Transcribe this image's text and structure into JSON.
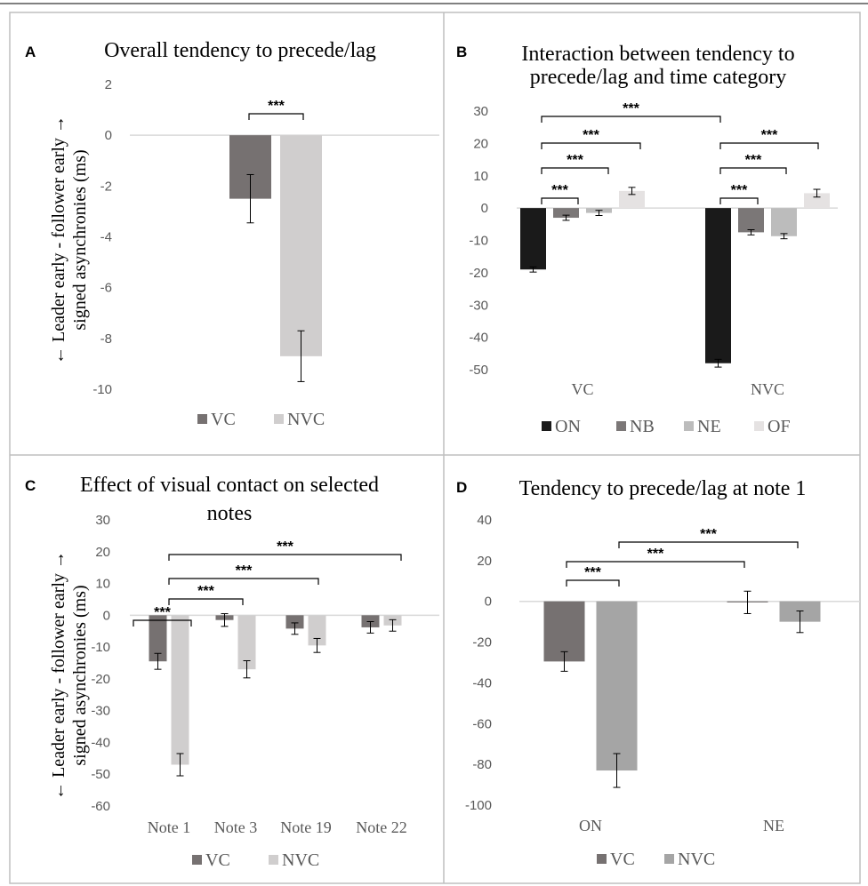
{
  "colors": {
    "VC": "#767171",
    "NVC": "#d0cece",
    "ON": "#1a1a1a",
    "NB": "#7b7777",
    "NE": "#bcbcbc",
    "OF": "#e5e2e2",
    "NVC_D": "#a5a5a5",
    "gridline": "#d9d9d9",
    "border": "#bfbfbf"
  },
  "chart_data": [
    {
      "panel": "A",
      "type": "bar",
      "title": "Overall tendency to precede/lag",
      "ylabel": "← Leader early - follower early → signed asynchronies (ms)",
      "ylim": [
        -10,
        2
      ],
      "yticks": [
        2,
        0,
        -2,
        -4,
        -6,
        -8,
        -10
      ],
      "categories": [
        ""
      ],
      "series": [
        {
          "name": "VC",
          "values": [
            -2.5
          ],
          "error": [
            0.95
          ]
        },
        {
          "name": "NVC",
          "values": [
            -8.7
          ],
          "error": [
            1.0
          ]
        }
      ],
      "legend": [
        "VC",
        "NVC"
      ],
      "annotations": [
        {
          "text": "***",
          "from": "VC",
          "to": "NVC"
        }
      ]
    },
    {
      "panel": "B",
      "type": "bar",
      "title": "Interaction between tendency to precede/lag and time category",
      "title_lines": [
        "Interaction between tendency to",
        "precede/lag and time category"
      ],
      "ylim": [
        -50,
        30
      ],
      "yticks": [
        30,
        20,
        10,
        0,
        -10,
        -20,
        -30,
        -40,
        -50
      ],
      "categories": [
        "VC",
        "NVC"
      ],
      "series": [
        {
          "name": "ON",
          "values": [
            -19,
            -48
          ],
          "error": [
            0.8,
            1.2
          ]
        },
        {
          "name": "NB",
          "values": [
            -3,
            -7.5
          ],
          "error": [
            0.8,
            0.8
          ]
        },
        {
          "name": "NE",
          "values": [
            -1.5,
            -8.7
          ],
          "error": [
            0.8,
            0.8
          ]
        },
        {
          "name": "OF",
          "values": [
            5.3,
            4.6
          ],
          "error": [
            1.1,
            1.2
          ]
        }
      ],
      "legend": [
        "ON",
        "NB",
        "NE",
        "OF"
      ],
      "annotations": [
        {
          "text": "***",
          "group": "VC",
          "from": "ON",
          "to": "NB"
        },
        {
          "text": "***",
          "group": "VC",
          "from": "ON",
          "to": "NE"
        },
        {
          "text": "***",
          "group": "VC",
          "from": "ON",
          "to": "OF"
        },
        {
          "text": "***",
          "group": "NVC",
          "from": "ON",
          "to": "NB"
        },
        {
          "text": "***",
          "group": "NVC",
          "from": "ON",
          "to": "NE"
        },
        {
          "text": "***",
          "group": "NVC",
          "from": "ON",
          "to": "OF"
        },
        {
          "text": "***",
          "from": "VC ON",
          "to": "NVC ON"
        }
      ]
    },
    {
      "panel": "C",
      "type": "bar",
      "title": "Effect of visual contact on selected notes",
      "title_lines": [
        "Effect of visual contact on selected",
        "notes"
      ],
      "ylabel": "← Leader early - follower early → signed asynchronies (ms)",
      "ylim": [
        -60,
        30
      ],
      "yticks": [
        30,
        20,
        10,
        0,
        -10,
        -20,
        -30,
        -40,
        -50,
        -60
      ],
      "categories": [
        "Note 1",
        "Note 3",
        "Note 19",
        "Note 22"
      ],
      "series": [
        {
          "name": "VC",
          "values": [
            -14.5,
            -1.5,
            -4.2,
            -3.8
          ],
          "error": [
            2.5,
            2.0,
            1.8,
            1.8
          ]
        },
        {
          "name": "NVC",
          "values": [
            -47,
            -17,
            -9.5,
            -3.2
          ],
          "error": [
            3.5,
            2.7,
            2.2,
            1.8
          ]
        }
      ],
      "legend": [
        "VC",
        "NVC"
      ],
      "annotations": [
        {
          "text": "***",
          "from": "Note 1 VC",
          "to": "Note 1 NVC"
        },
        {
          "text": "***",
          "from": "Note 1",
          "to": "Note 3"
        },
        {
          "text": "***",
          "from": "Note 1",
          "to": "Note 19"
        },
        {
          "text": "***",
          "from": "Note 1",
          "to": "Note 22"
        }
      ]
    },
    {
      "panel": "D",
      "type": "bar",
      "title": "Tendency to precede/lag at note 1",
      "ylim": [
        -100,
        40
      ],
      "yticks": [
        40,
        20,
        0,
        -20,
        -40,
        -60,
        -80,
        -100
      ],
      "categories": [
        "ON",
        "NE"
      ],
      "series": [
        {
          "name": "VC",
          "values": [
            -29.5,
            -0.5
          ],
          "error": [
            4.8,
            5.5
          ]
        },
        {
          "name": "NVC",
          "values": [
            -83,
            -10
          ],
          "error": [
            8.3,
            5.3
          ]
        }
      ],
      "legend": [
        "VC",
        "NVC"
      ],
      "annotations": [
        {
          "text": "***",
          "from": "ON VC",
          "to": "ON NVC"
        },
        {
          "text": "***",
          "from": "ON VC",
          "to": "NE VC"
        },
        {
          "text": "***",
          "from": "ON NVC",
          "to": "NE NVC"
        }
      ]
    }
  ]
}
